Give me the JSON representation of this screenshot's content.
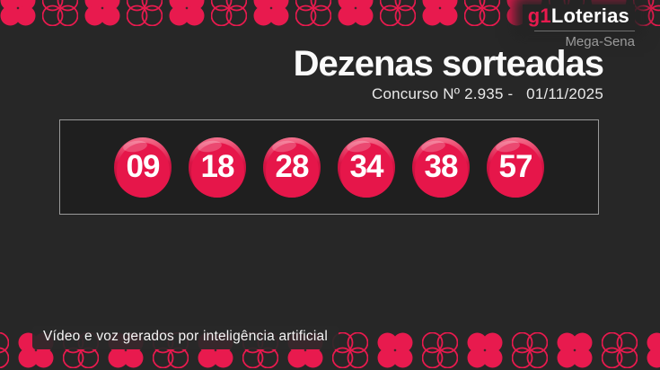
{
  "brand": {
    "g1": "g1",
    "name": "Loterias",
    "product": "Mega-Sena"
  },
  "page": {
    "title": "Dezenas sorteadas",
    "subtitle": "Concurso Nº 2.935 -   01/11/2025"
  },
  "draw": {
    "numbers": [
      "09",
      "18",
      "28",
      "34",
      "38",
      "57"
    ]
  },
  "footer": {
    "disclaimer": "Vídeo e voz gerados por inteligência artificial"
  },
  "icons": {
    "pattern_icon": "clover-icon"
  },
  "theme": {
    "accent": "#e81a4e",
    "ball_color": "#e6164a",
    "background": "#272727",
    "panel_background": "#1f1f1f",
    "panel_border": "#9a9a9a",
    "muted_text": "#9b9b9b",
    "text": "#fafafa"
  }
}
